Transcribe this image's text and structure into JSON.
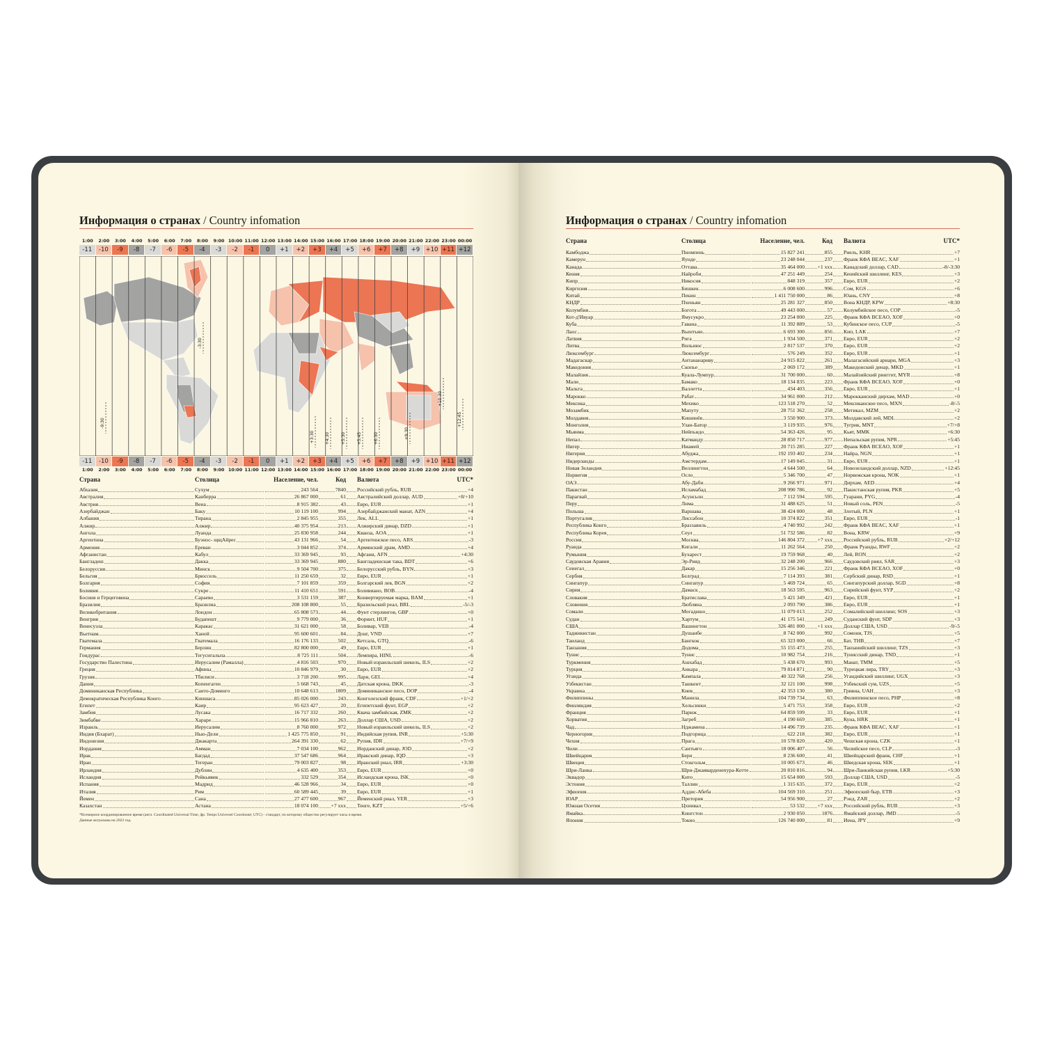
{
  "left_page": {
    "title_ru": "Информация о странах",
    "title_en": "/ Country infomation",
    "headers": {
      "country": "Страна",
      "capital": "Столица",
      "population": "Население, чел.",
      "code": "Код",
      "currency": "Валюта",
      "utc": "UTC*"
    },
    "timezones": {
      "hours": [
        "1:00",
        "2:00",
        "3:00",
        "4:00",
        "5:00",
        "6:00",
        "7:00",
        "8:00",
        "9:00",
        "10:00",
        "11:00",
        "12:00",
        "13:00",
        "14:00",
        "15:00",
        "16:00",
        "17:00",
        "18:00",
        "19:00",
        "20:00",
        "21:00",
        "22:00",
        "23:00",
        "00:00"
      ],
      "offsets": [
        "-11",
        "-10",
        "-9",
        "-8",
        "-7",
        "-6",
        "-5",
        "-4",
        "-3",
        "-2",
        "-1",
        "0",
        "+1",
        "+2",
        "+3",
        "+4",
        "+5",
        "+6",
        "+7",
        "+8",
        "+9",
        "+10",
        "+11",
        "+12"
      ],
      "palette": [
        "#d9d9d7",
        "#f6c2ac",
        "#ec7553",
        "#a3a3a2"
      ]
    },
    "map_labels": [
      "-3:30",
      "-9:30",
      "+3:30",
      "+4:30",
      "+5:30",
      "+5:45",
      "+6:30",
      "+9:30",
      "+10:30",
      "+12:45"
    ],
    "rows": [
      [
        "Абхазия",
        "Сухум",
        "243 564",
        "7840",
        "Российский рубль, RUB",
        "+4"
      ],
      [
        "Австралия",
        "Канберра",
        "26 867 000",
        "61",
        "Австралийский доллар, AUD",
        "+8/+10"
      ],
      [
        "Австрия",
        "Вена",
        "8 915 382",
        "43",
        "Евро, EUR",
        "+1"
      ],
      [
        "Азербайджан",
        "Баку",
        "10 119 100",
        "994",
        "Азербайджанский манат, AZN",
        "+4"
      ],
      [
        "Албания",
        "Тирана",
        "2 845 955",
        "355",
        "Лек, ALL",
        "+1"
      ],
      [
        "Алжир",
        "Алжир",
        "40 375 954",
        "213",
        "Алжирский динар, DZD",
        "+1"
      ],
      [
        "Ангола",
        "Луанда",
        "25 830 958",
        "244",
        "Кванза, AOA",
        "+1"
      ],
      [
        "Аргентина",
        "Буэнос- щщАйрес",
        "43 131 966",
        "54",
        "Аргентинское песо, ARS",
        "-3"
      ],
      [
        "Армения",
        "Ереван",
        "3 044 852",
        "374",
        "Армянский драм, AMD",
        "+4"
      ],
      [
        "Афганистан",
        "Кабул",
        "33 369 945",
        "93",
        "Афгани, AFN",
        "+4:30"
      ],
      [
        "Бангладеш",
        "Дакка",
        "33 369 945",
        "880",
        "Бангладешская така, BDT",
        "+6"
      ],
      [
        "Белоруссия",
        "Минск",
        "9 504 700",
        "375",
        "Белорусский рубль, BYN",
        "+3"
      ],
      [
        "Бельгия",
        "Брюссель",
        "11 250 659",
        "32",
        "Евро, EUR",
        "+1"
      ],
      [
        "Болгария",
        "София",
        "7 101 859",
        "359",
        "Болгарский лев, BGN",
        "+2"
      ],
      [
        "Боливия",
        "Сукре",
        "11 410 651",
        "591",
        "Боливиано, BOB",
        "-4"
      ],
      [
        "Босния и Герцеговина",
        "Сараево",
        "3 531 159",
        "387",
        "Конвертируемая марка, BAM",
        "+1"
      ],
      [
        "Бразилия",
        "Бразилиа",
        "208 108 800",
        "55",
        "Бразильский реал, BRL",
        "-5/-3"
      ],
      [
        "Великобритания",
        "Лондон",
        "65 808 573",
        "44",
        "Фунт стерлингов, GBP",
        "+0"
      ],
      [
        "Венгрия",
        "Будапешт",
        "9 779 000",
        "36",
        "Форинт, HUF",
        "+1"
      ],
      [
        "Венесуэла",
        "Каракас",
        "31 621 000",
        "58",
        "Боливар, VEB",
        "-4"
      ],
      [
        "Вьетнам",
        "Ханой",
        "95 600 601",
        "84",
        "Донг, VND",
        "+7"
      ],
      [
        "Гватемала",
        "Гватемала",
        "16 176 133",
        "502",
        "Кетсаль, GTQ",
        "-6"
      ],
      [
        "Германия",
        "Берлин",
        "82 800 000",
        "49",
        "Евро, EUR",
        "+1"
      ],
      [
        "Гондурас",
        "Тегусигальпа",
        "8 725 111",
        "504",
        "Лемпира, HINL",
        "-6"
      ],
      [
        "Государство Палестина",
        "Иерусалим (Рамалла)",
        "4 816 503",
        "970",
        "Новый израильский шекель, ILS",
        "+2"
      ],
      [
        "Греция",
        "Афины",
        "10 846 979",
        "30",
        "Евро, EUR",
        "+2"
      ],
      [
        "Грузия",
        "Тбилиси",
        "3 718 200",
        "995",
        "Лари, GEL",
        "+4"
      ],
      [
        "Дания",
        "Копенгаген",
        "5 668 743",
        "45",
        "Датская крона, DKK",
        "-3"
      ],
      [
        "Доминиканская Республика",
        "Санто-Доминго",
        "10 648 613",
        "1809",
        "Доминиканское песо, DOP",
        "-4"
      ],
      [
        "Демократическая Республика Конго",
        "Киншаса",
        "85 026 000",
        "243",
        "Конголезский франк, CDF",
        "+1/+2"
      ],
      [
        "Египет",
        "Каир",
        "95 623 427",
        "20",
        "Египетский фунт, EGP",
        "+2"
      ],
      [
        "Замбия",
        "Лусака",
        "16 717 332",
        "260",
        "Квача замбийская, ZMK",
        "+2"
      ],
      [
        "Зимбабве",
        "Хараре",
        "15 966 810",
        "263",
        "Доллар США, USD",
        "+2"
      ],
      [
        "Израиль",
        "Иерусалим",
        "8 760 000",
        "972",
        "Новый израильский шекель, ILS",
        "+2"
      ],
      [
        "Индия (Бхарат)",
        "Нью-Дели",
        "1 425 775 850",
        "91",
        "Индийская рупия, INR",
        "+5:30"
      ],
      [
        "Индонезия",
        "Джакарта",
        "264 391 330",
        "62",
        "Рупия, IDR",
        "+7/+9"
      ],
      [
        "Иордания",
        "Амман",
        "7 034 100",
        "962",
        "Иорданский динар, JOD",
        "+2"
      ],
      [
        "Ирак",
        "Багдад",
        "37 547 686",
        "964",
        "Иракский динар, IQD",
        "+3"
      ],
      [
        "Иран",
        "Тегеран",
        "79 003 827",
        "98",
        "Иранский риал, IRR",
        "+3:30"
      ],
      [
        "Ирландия",
        "Дублин",
        "4 635 400",
        "353",
        "Евро, EUR",
        "+0"
      ],
      [
        "Исландия",
        "Рейкьявик",
        "332 529",
        "354",
        "Исландская крона, ISK",
        "+0"
      ],
      [
        "Испания",
        "Мадрид",
        "46 528 966",
        "34",
        "Евро, EUR",
        "+0"
      ],
      [
        "Италия",
        "Рим",
        "60 589 445",
        "39",
        "Евро, EUR",
        "+1"
      ],
      [
        "Йемен",
        "Сана",
        "27 477 600",
        "967",
        "Йеменский риал, YER",
        "+3"
      ],
      [
        "Казахстан",
        "Астана",
        "18 074 100",
        "+7 xxx",
        "Тенге, KZT",
        "+5/+6"
      ]
    ],
    "footnote": "*Всемирное координированное время (англ. Coordinated Universal Time, фр. Temps Universel Coordonné; UTC) - стандарт, по которому общество регулирует часы и время.",
    "footnote2": "Данные актуальны на 2023 год."
  },
  "right_page": {
    "title_ru": "Информация о странах",
    "title_en": "/ Country infomation",
    "headers": {
      "country": "Страна",
      "capital": "Столица",
      "population": "Население, чел.",
      "code": "Код",
      "currency": "Валюта",
      "utc": "UTC*"
    },
    "rows": [
      [
        "Камбоджа",
        "Пномпень",
        "15 827 241",
        "855",
        "Риель, KHR",
        "+7"
      ],
      [
        "Камерун",
        "Яунде",
        "23 248 044",
        "237",
        "Франк КФА BEAC, XAF",
        "+1"
      ],
      [
        "Канада",
        "Оттава",
        "35 464 000",
        "+1 xxx",
        "Канадский доллар, CAD",
        "-8/-3:30"
      ],
      [
        "Кения",
        "Найроби",
        "47 251 449",
        "254",
        "Кенийский шиллинг, KES",
        "+3"
      ],
      [
        "Кипр",
        "Никосия",
        "848 319",
        "357",
        "Евро, EUR",
        "+2"
      ],
      [
        "Киргизия",
        "Бишкек",
        "6 008 600",
        "996",
        "Сом, KGS",
        "+6"
      ],
      [
        "Китай",
        "Пекин",
        "1 411 750 000",
        "86",
        "Юань, CNY",
        "+8"
      ],
      [
        "КНДР",
        "Пхеньян",
        "25 281 327",
        "850",
        "Вона КНДР, KPW",
        "+8:30"
      ],
      [
        "Колумбия",
        "Богота",
        "49 443 000",
        "57",
        "Колумбийское песо, COP",
        "-5"
      ],
      [
        "Кот-д'Ивуар",
        "Ямусукро",
        "23 254 000",
        "225",
        "Франк КФА BCEAO, XOF",
        "+0"
      ],
      [
        "Куба",
        "Гавана",
        "11 392 889",
        "53",
        "Кубинское песо, CUP",
        "-5"
      ],
      [
        "Лаос",
        "Вьентьян",
        "6 693 300",
        "856",
        "Кип, LAK",
        "+7"
      ],
      [
        "Латвия",
        "Рига",
        "1 934 500",
        "371",
        "Евро, EUR",
        "+2"
      ],
      [
        "Литва",
        "Вильнюс",
        "2 817 537",
        "370",
        "Евро, EUR",
        "+2"
      ],
      [
        "Люксембург",
        "Люксембург",
        "576 249",
        "352",
        "Евро, EUR",
        "+1"
      ],
      [
        "Мадагаскар",
        "Антананариву",
        "24 915 822",
        "261",
        "Малагасийский ариари, MGA",
        "+3"
      ],
      [
        "Македония",
        "Скопье",
        "2 069 172",
        "389",
        "Македонский денар, MKD",
        "+1"
      ],
      [
        "Малайзия",
        "Куала-Лумпур",
        "31 700 000",
        "60",
        "Малайзийский ринггит, MYR",
        "+8"
      ],
      [
        "Мали",
        "Бамако",
        "18 134 835",
        "223",
        "Франк КФА BCEAO, XOF",
        "+0"
      ],
      [
        "Мальта",
        "Валлетта",
        "434 403",
        "356",
        "Евро, EUR",
        "+1"
      ],
      [
        "Марокко",
        "Рабат",
        "34 961 000",
        "212",
        "Марокканский дирхам, MAD",
        "+0"
      ],
      [
        "Мексика",
        "Мехико",
        "123 518 270",
        "52",
        "Мексиканское песо, MXN",
        "-8/-5"
      ],
      [
        "Мозамбик",
        "Мапуту",
        "28 751 362",
        "258",
        "Метикал, MZM",
        "+2"
      ],
      [
        "Молдавия",
        "Кишинёв",
        "3 550 900",
        "373",
        "Молдавский лей, MDL",
        "+2"
      ],
      [
        "Монголия",
        "Улан-Батор",
        "3 119 935",
        "976",
        "Тугрик, MNT",
        "+7/+8"
      ],
      [
        "Мьянма",
        "Нейпьидо",
        "54 363 426",
        "95",
        "Кьят, MMK",
        "+6:30"
      ],
      [
        "Непал",
        "Катманду",
        "28 850 717",
        "977",
        "Непальская рупия, NPR",
        "+5:45"
      ],
      [
        "Нигер",
        "Ниамей",
        "20 715 285",
        "227",
        "Франк КФА BCEAO, XOF",
        "+1"
      ],
      [
        "Нигерия",
        "Абуджа",
        "192 193 402",
        "234",
        "Найра, NGN",
        "+1"
      ],
      [
        "Нидерланды",
        "Амстердам",
        "17 149 045",
        "31",
        "Евро, EUR",
        "+1"
      ],
      [
        "Новая Зеландия",
        "Веллингтон",
        "4 644 500",
        "64",
        "Новозеландский доллар, NZD",
        "+12:45"
      ],
      [
        "Норвегия",
        "Осло",
        "5 346 700",
        "47",
        "Норвежская крона, NOK",
        "+1"
      ],
      [
        "ОАЭ",
        "Абу-Даби",
        "9 266 971",
        "971",
        "Дирхам, AED",
        "+4"
      ],
      [
        "Пакистан",
        "Исламабад",
        "208 990 786",
        "92",
        "Пакистанская рупия, PKR",
        "+5"
      ],
      [
        "Парагвай",
        "Асунсьон",
        "7 112 594",
        "595",
        "Гуарани, PYG",
        "-4"
      ],
      [
        "Перу",
        "Лима",
        "31 488 625",
        "51",
        "Новый соль, PEN",
        "-5"
      ],
      [
        "Польша",
        "Варшава",
        "38 424 000",
        "48",
        "Злотый, PLN",
        "+1"
      ],
      [
        "Португалия",
        "Лиссабон",
        "10 374 822",
        "351",
        "Евро, EUR",
        "-1"
      ],
      [
        "Республика Конго",
        "Браззавиль",
        "4 740 992",
        "242",
        "Франк КФА BEAC, XAF",
        "+1"
      ],
      [
        "Республика Корея",
        "Сеул",
        "51 732 586",
        "82",
        "Вона, KRW",
        "+9"
      ],
      [
        "Россия",
        "Москва",
        "146 804 372",
        "+7 xxx",
        "Российский рубль, RUB",
        "+2/+12"
      ],
      [
        "Руанда",
        "Кигали",
        "11 262 564",
        "250",
        "Франк Руанды, RWF",
        "+2"
      ],
      [
        "Румыния",
        "Бухарест",
        "19 759 968",
        "40",
        "Лей, RON",
        "+2"
      ],
      [
        "Саудовская Аравия",
        "Эр-Рияд",
        "32 248 200",
        "966",
        "Саудовский риял, SAR",
        "+3"
      ],
      [
        "Сенегал",
        "Дакар",
        "15 256 346",
        "221",
        "Франк КФА BCEAO, XOF",
        "+0"
      ],
      [
        "Сербия",
        "Белград",
        "7 114 393",
        "381",
        "Сербский динар, RSD",
        "+1"
      ],
      [
        "Сингапур",
        "Сингапур",
        "5 469 724",
        "65",
        "Сингапурский доллар, SGD",
        "+8"
      ],
      [
        "Сирия",
        "Дамаск",
        "18 563 595",
        "963",
        "Сирийский фунт, SYP",
        "+2"
      ],
      [
        "Словакия",
        "Братислава",
        "5 421 349",
        "421",
        "Евро, EUR",
        "+1"
      ],
      [
        "Словения",
        "Любляна",
        "2 093 790",
        "386",
        "Евро, EUR",
        "+1"
      ],
      [
        "Сомали",
        "Могадишо",
        "11 079 013",
        "252",
        "Сомалийский шиллинг, SOS",
        "+3"
      ],
      [
        "Судан",
        "Хартум",
        "41 175 541",
        "249",
        "Суданский фунт, SDP",
        "+3"
      ],
      [
        "США",
        "Вашингтон",
        "326 481 000",
        "+1 xxx",
        "Доллар США, USD",
        "-9/-5"
      ],
      [
        "Таджикистан",
        "Душанбе",
        "8 742 000",
        "992",
        "Сомони, TJS",
        "+5"
      ],
      [
        "Таиланд",
        "Бангкок",
        "65 323 000",
        "66",
        "Бат, THB",
        "+7"
      ],
      [
        "Танзания",
        "Додома",
        "55 155 473",
        "255",
        "Танзанийский шиллинг, TZS",
        "+3"
      ],
      [
        "Тунис",
        "Тунис",
        "10 982 754",
        "216",
        "Тунисский динар, TND",
        "+1"
      ],
      [
        "Туркмения",
        "Ашхабад",
        "5 438 670",
        "993",
        "Манат, TMM",
        "+5"
      ],
      [
        "Турция",
        "Анкара",
        "79 814 871",
        "90",
        "Турецкая лира, TRY",
        "+3"
      ],
      [
        "Уганда",
        "Кампала",
        "40 322 768",
        "256",
        "Угандийский шиллинг, UGX",
        "+3"
      ],
      [
        "Узбекистан",
        "Ташкент",
        "32 121 100",
        "998",
        "Узбекский сум, UZS",
        "+5"
      ],
      [
        "Украина",
        "Киев",
        "42 353 130",
        "380",
        "Гривна, UAH",
        "+3"
      ],
      [
        "Филиппины",
        "Манила",
        "104 739 734",
        "63",
        "Филиппинское песо, PHP",
        "+8"
      ],
      [
        "Финляндия",
        "Хельсинки",
        "5 471 753",
        "358",
        "Евро, EUR",
        "+2"
      ],
      [
        "Франция",
        "Париж",
        "64 859 599",
        "33",
        "Евро, EUR",
        "+1"
      ],
      [
        "Хорватия",
        "Загреб",
        "4 190 669",
        "385",
        "Куна, HRK",
        "+1"
      ],
      [
        "Чад",
        "Нджамена",
        "14 496 739",
        "235",
        "Франк КФА BEAC, XAF",
        "+1"
      ],
      [
        "Черногория",
        "Подгорица",
        "622 218",
        "382",
        "Евро, EUR",
        "+1"
      ],
      [
        "Чехия",
        "Прага",
        "10 578 820",
        "420",
        "Чешская крона, CZK",
        "+1"
      ],
      [
        "Чили",
        "Сантьяго",
        "18 006 407",
        "56",
        "Чилийское песо, CLP",
        "-3"
      ],
      [
        "Швейцария",
        "Берн",
        "8 236 600",
        "41",
        "Швейцарский франк, CHF",
        "+1"
      ],
      [
        "Швеция",
        "Стокгольм",
        "10 005 673",
        "46",
        "Шведская крона, SEK",
        "+1"
      ],
      [
        "Шри-Ланка",
        "Шри-Джаяварденепура-Котте",
        "20 810 816",
        "94",
        "Шри-Ланкийская рупия, LKR",
        "+5:30"
      ],
      [
        "Эквадор",
        "Кито",
        "15 654 000",
        "593",
        "Доллар США, USD",
        "-5"
      ],
      [
        "Эстония",
        "Таллин",
        "1 315 635",
        "372",
        "Евро, EUR",
        "+2"
      ],
      [
        "Эфиопия",
        "Аддис-Абеба",
        "104 569 310",
        "251",
        "Эфиопский быр, ETB",
        "+3"
      ],
      [
        "ЮАР",
        "Претория",
        "54 956 900",
        "27",
        "Рэнд, ZAR",
        "+2"
      ],
      [
        "Южная Осетия",
        "Цхинвал",
        "53 532",
        "+7 xxx",
        "Российский рубль, RUB",
        "+3"
      ],
      [
        "Ямайка",
        "Кингстон",
        "2 930 050",
        "1876",
        "Ямайский доллар, JMD",
        "-5"
      ],
      [
        "Япония",
        "Токио",
        "126 740 000",
        "81",
        "Иена, JPY",
        "+9"
      ]
    ]
  }
}
